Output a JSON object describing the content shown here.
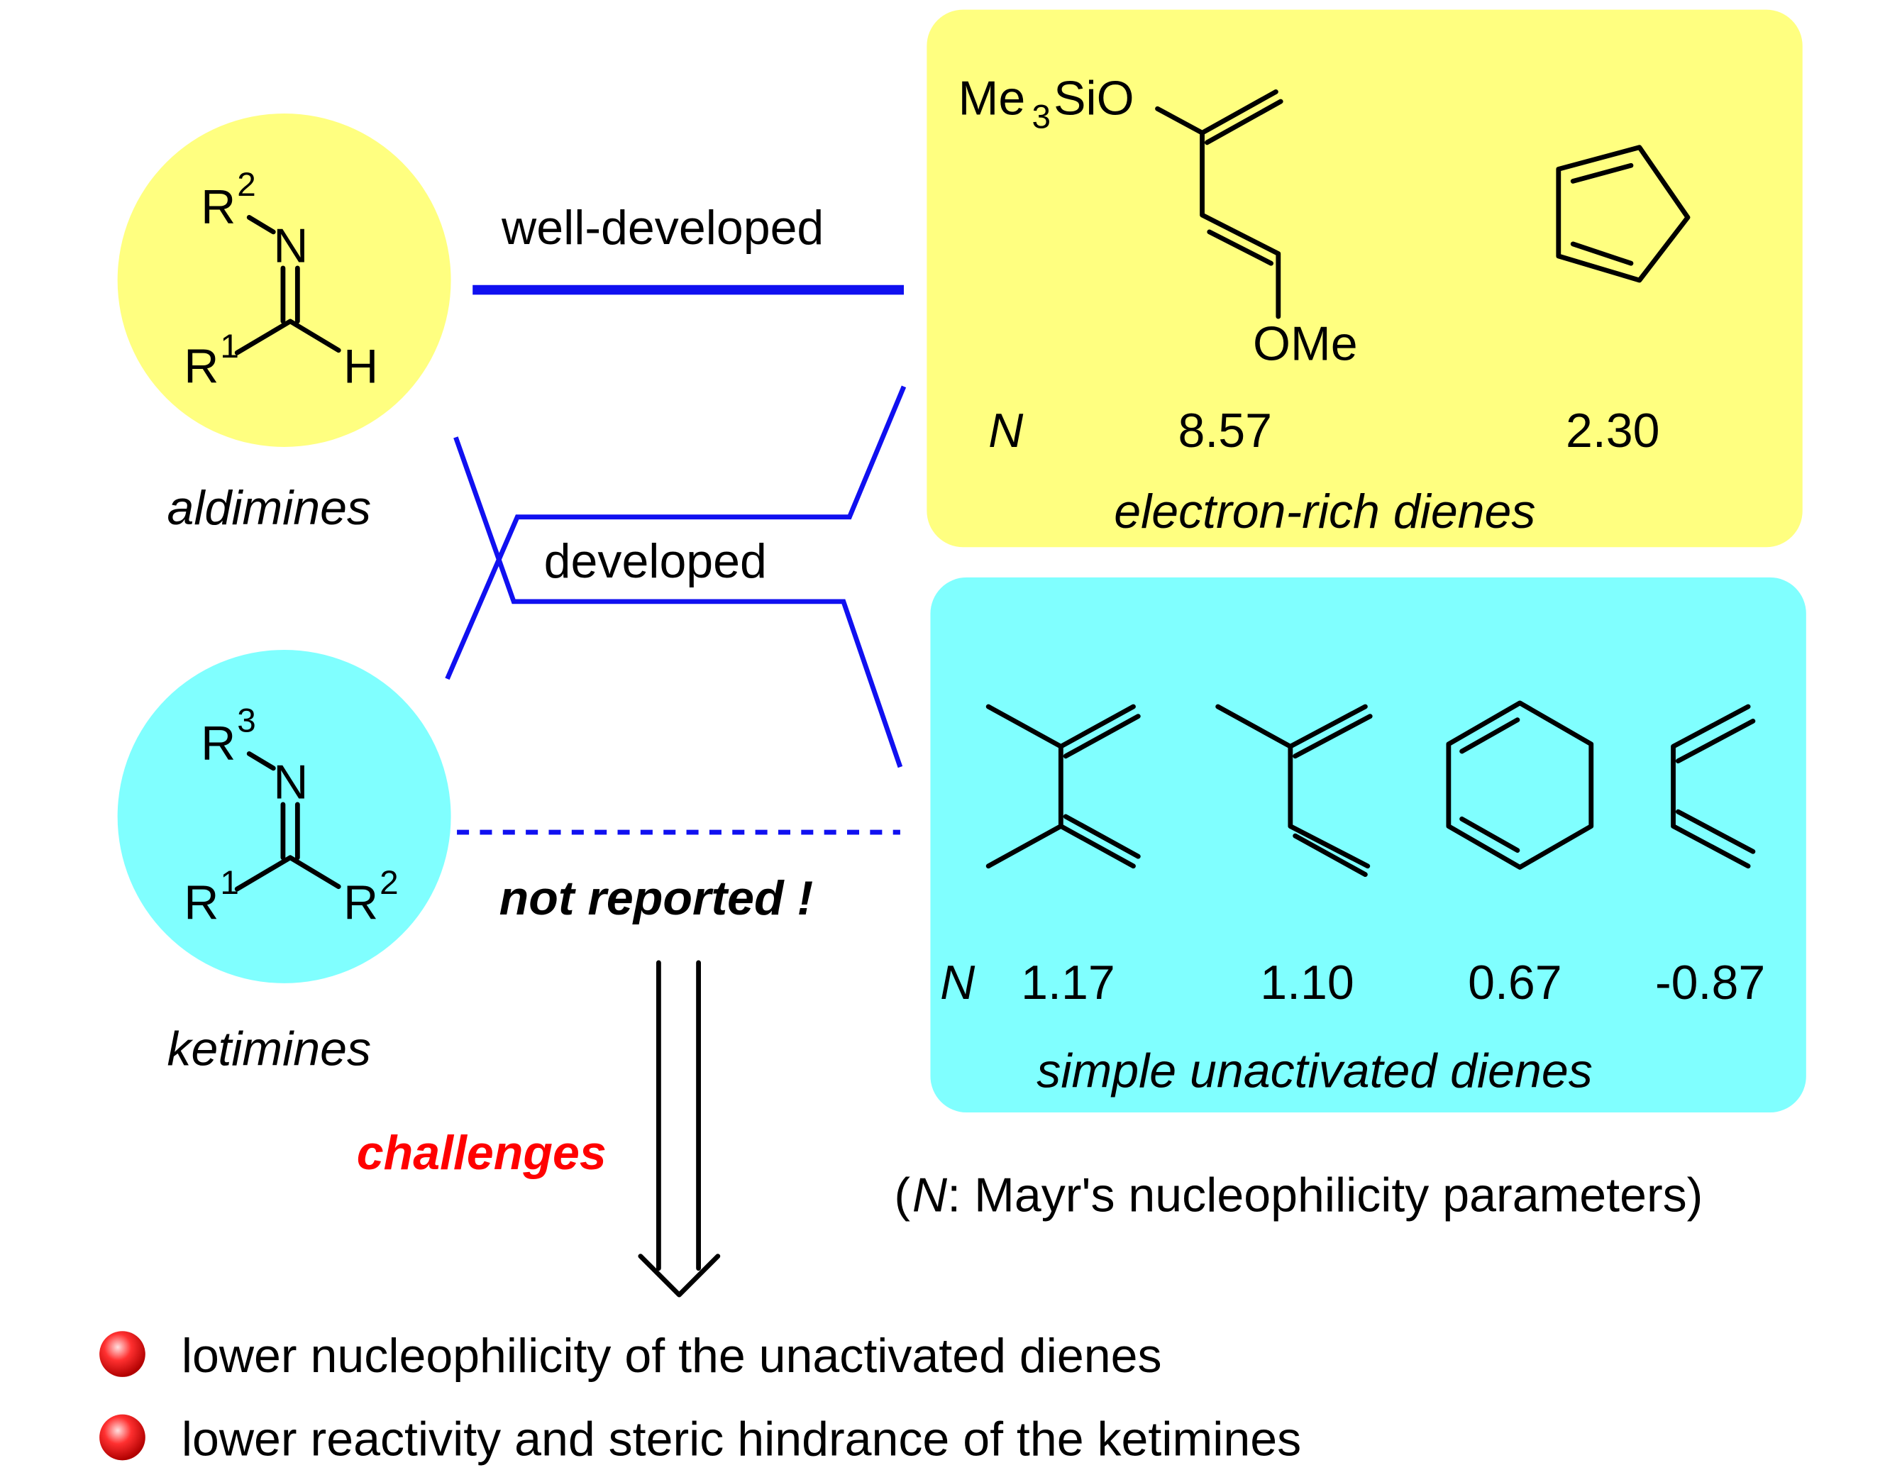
{
  "colors": {
    "yellow": "#ffff80",
    "cyan": "#80ffff",
    "blue": "#1010f0",
    "red": "#ff0000"
  },
  "aldimine": {
    "r2": "R",
    "r2_sup": "2",
    "n": "N",
    "r1": "R",
    "r1_sup": "1",
    "h": "H",
    "label": "aldimines"
  },
  "ketimine": {
    "r3": "R",
    "r3_sup": "3",
    "n": "N",
    "r1": "R",
    "r1_sup": "1",
    "r2": "R",
    "r2_sup": "2",
    "label": "ketimines"
  },
  "links": {
    "well_developed": "well-developed",
    "developed": "developed",
    "not_reported": "not reported !"
  },
  "rich_dienes": {
    "me3sio_a": "Me",
    "me3sio_sub": "3",
    "me3sio_b": "SiO",
    "ome": "OMe",
    "n_label": "N",
    "values": [
      "8.57",
      "2.30"
    ],
    "caption": "electron-rich dienes"
  },
  "simple_dienes": {
    "n_label": "N",
    "values": [
      "1.17",
      "1.10",
      "0.67",
      "-0.87"
    ],
    "caption": "simple unactivated dienes"
  },
  "note": {
    "open": "(",
    "n": "N",
    "rest": ": Mayr's nucleophilicity parameters)"
  },
  "challenges": {
    "label": "challenges",
    "items": [
      "lower nucleophilicity of the unactivated dienes",
      "lower reactivity and steric hindrance of the ketimines"
    ]
  }
}
